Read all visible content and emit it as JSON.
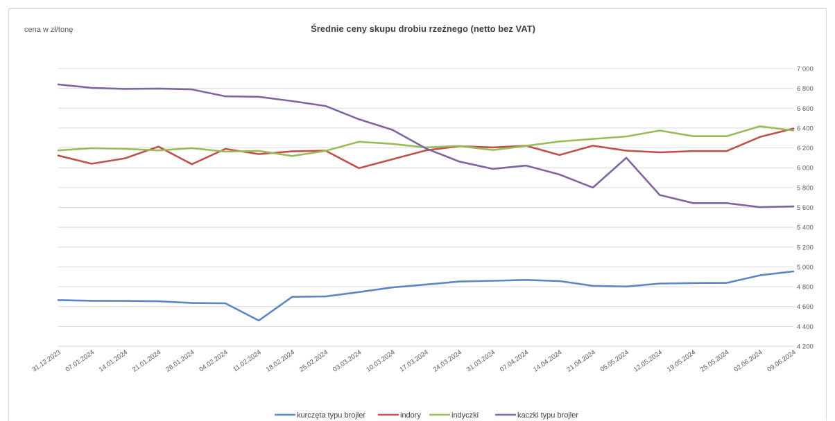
{
  "chart_data": {
    "type": "line",
    "title": "Średnie ceny skupu drobiu rzeźnego (netto bez VAT)",
    "ylabel": "cena w zł/tonę",
    "xlabel": "",
    "ylim": [
      4200,
      7000
    ],
    "y_ticks": [
      "4 200",
      "4 400",
      "4 600",
      "4 800",
      "5 000",
      "5 200",
      "5 400",
      "5 600",
      "5 800",
      "6 000",
      "6 200",
      "6 400",
      "6 600",
      "6 800",
      "7 000"
    ],
    "y_axis_side": "right",
    "grid": true,
    "legend_position": "bottom",
    "categories": [
      "31.12.2023",
      "07.01.2024",
      "14.01.2024",
      "21.01.2024",
      "28.01.2024",
      "04.02.2024",
      "11.02.2024",
      "18.02.2024",
      "25.02.2024",
      "03.03.2024",
      "10.03.2024",
      "17.03.2024",
      "24.03.2024",
      "31.03.2024",
      "07.04.2024",
      "14.04.2024",
      "21.04.2024",
      "05.05.2024",
      "12.05.2024",
      "19.05.2024",
      "25.05.2024",
      "02.06.2024",
      "09.06.2024"
    ],
    "series": [
      {
        "name": "kurczęta typu brojler",
        "color": "#5b86c5",
        "values": [
          4665,
          4658,
          4657,
          4653,
          4636,
          4633,
          4459,
          4698,
          4702,
          4746,
          4793,
          4822,
          4852,
          4860,
          4868,
          4857,
          4809,
          4802,
          4832,
          4837,
          4838,
          4915,
          4955
        ]
      },
      {
        "name": "indory",
        "color": "#c0504d",
        "values": [
          6122,
          6040,
          6095,
          6213,
          6035,
          6190,
          6138,
          6165,
          6172,
          5995,
          6085,
          6175,
          6217,
          6205,
          6222,
          6128,
          6222,
          6172,
          6155,
          6168,
          6168,
          6310,
          6395
        ]
      },
      {
        "name": "indyczki",
        "color": "#9bbb59",
        "values": [
          6175,
          6197,
          6190,
          6175,
          6198,
          6162,
          6170,
          6118,
          6170,
          6262,
          6240,
          6205,
          6220,
          6178,
          6220,
          6265,
          6290,
          6315,
          6375,
          6318,
          6318,
          6418,
          6375
        ]
      },
      {
        "name": "kaczki typu brojler",
        "color": "#8064a2",
        "values": [
          6840,
          6805,
          6795,
          6798,
          6790,
          6720,
          6715,
          6672,
          6622,
          6488,
          6382,
          6195,
          6062,
          5988,
          6022,
          5932,
          5800,
          6100,
          5725,
          5643,
          5643,
          5602,
          5610
        ]
      }
    ]
  }
}
